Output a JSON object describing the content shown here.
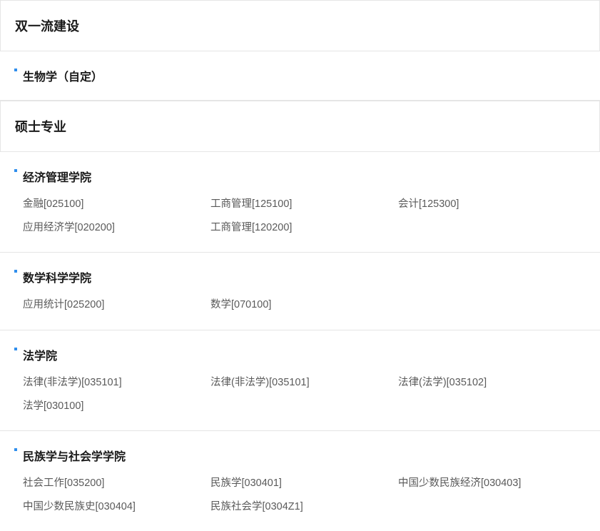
{
  "sections": [
    {
      "title": "双一流建设",
      "groups": [
        {
          "heading": "生物学（自定）",
          "majors": []
        }
      ]
    },
    {
      "title": "硕士专业",
      "groups": [
        {
          "heading": "经济管理学院",
          "majors": [
            "金融[025100]",
            "工商管理[125100]",
            "会计[125300]",
            "应用经济学[020200]",
            "工商管理[120200]"
          ]
        },
        {
          "heading": "数学科学学院",
          "majors": [
            "应用统计[025200]",
            "数学[070100]"
          ]
        },
        {
          "heading": "法学院",
          "majors": [
            "法律(非法学)[035101]",
            "法律(非法学)[035101]",
            "法律(法学)[035102]",
            "法学[030100]"
          ]
        },
        {
          "heading": "民族学与社会学学院",
          "majors": [
            "社会工作[035200]",
            "民族学[030401]",
            "中国少数民族经济[030403]",
            "中国少数民族史[030404]",
            "民族社会学[0304Z1]"
          ]
        }
      ]
    }
  ],
  "colors": {
    "bullet": "#2f8eed",
    "border": "#e5e5e5",
    "heading": "#1a1a1a",
    "major_text": "#5a5a5a",
    "background": "#ffffff"
  },
  "typography": {
    "section_title_size": 18,
    "subsection_title_size": 16,
    "major_size": 14.5,
    "section_title_weight": 600,
    "subsection_title_weight": 600
  }
}
